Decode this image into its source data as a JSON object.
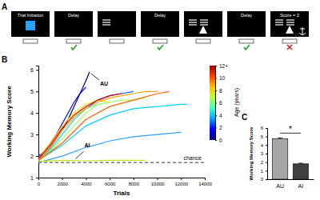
{
  "task_panel": {
    "title": "A",
    "screens": [
      "Trial Initiation",
      "Delay",
      null,
      "Delay",
      null,
      "Delay",
      "Score = 3"
    ]
  },
  "chart_data": [
    {
      "type": "line",
      "title": "B",
      "x_label": "Trials",
      "y_label": "Working Memory Score",
      "xlim": [
        0,
        14000
      ],
      "xticks": [
        0,
        2000,
        4000,
        6000,
        8000,
        10000,
        12000,
        14000
      ],
      "ylim": [
        1,
        6.2
      ],
      "yticks": [
        1,
        2,
        3,
        4,
        5,
        6
      ],
      "series": [
        {
          "color": "#00007f",
          "x": [
            0,
            500,
            1000,
            1500,
            2000,
            2500,
            3000,
            3500,
            4000,
            4300
          ],
          "values": [
            1.9,
            2.1,
            2.4,
            2.8,
            3.2,
            3.7,
            4.3,
            4.9,
            5.5,
            5.9
          ]
        },
        {
          "color": "#0000ff",
          "x": [
            0,
            500,
            1000,
            1500,
            2000,
            2500,
            3000,
            3500,
            4000
          ],
          "values": [
            2.0,
            2.2,
            2.6,
            3.0,
            3.5,
            4.0,
            4.5,
            4.9,
            5.2
          ]
        },
        {
          "color": "#0060ff",
          "x": [
            0,
            1000,
            2000,
            3000,
            4000,
            5000,
            6000,
            7000,
            8000
          ],
          "values": [
            1.8,
            2.3,
            3.0,
            3.7,
            4.2,
            4.6,
            4.8,
            4.9,
            5.0
          ]
        },
        {
          "color": "#30a0ff",
          "x": [
            0,
            2000,
            4000,
            6000,
            8000,
            10000,
            12000
          ],
          "values": [
            1.7,
            2.0,
            2.4,
            2.7,
            2.9,
            3.0,
            3.1
          ]
        },
        {
          "color": "#00d0ff",
          "x": [
            0,
            2000,
            4000,
            6000,
            8000,
            10000,
            12000,
            12500
          ],
          "values": [
            1.8,
            2.5,
            3.4,
            3.9,
            4.2,
            4.3,
            4.4,
            4.4
          ]
        },
        {
          "color": "#40ffc0",
          "x": [
            0,
            1000,
            2000,
            3000,
            4000,
            5000,
            6000
          ],
          "values": [
            1.8,
            2.3,
            3.0,
            3.7,
            4.2,
            4.4,
            4.5
          ]
        },
        {
          "color": "#a0ff60",
          "x": [
            0,
            1000,
            2000,
            3000,
            4000,
            5000,
            6000,
            7000,
            8000,
            9000
          ],
          "values": [
            1.8,
            2.2,
            2.8,
            3.4,
            4.0,
            4.4,
            4.5,
            4.6,
            4.6,
            4.7
          ]
        },
        {
          "color": "#c8e020",
          "x": [
            0,
            2000,
            4000,
            6000,
            8000,
            9000
          ],
          "values": [
            1.75,
            1.8,
            1.78,
            1.8,
            1.8,
            1.8
          ]
        },
        {
          "color": "#ffe000",
          "x": [
            0,
            1000,
            2000,
            3000,
            4000,
            5000,
            6000
          ],
          "values": [
            1.9,
            2.6,
            3.4,
            4.0,
            4.4,
            4.6,
            4.5
          ]
        },
        {
          "color": "#ffa000",
          "x": [
            0,
            1000,
            2000,
            3000,
            4000,
            5000,
            6000,
            7000,
            8000,
            9000,
            10000
          ],
          "values": [
            1.8,
            2.4,
            3.2,
            3.8,
            4.2,
            4.5,
            4.7,
            4.8,
            4.9,
            5.0,
            5.0
          ]
        },
        {
          "color": "#ff6000",
          "x": [
            0,
            2000,
            4000,
            6000,
            8000,
            10000,
            11000
          ],
          "values": [
            1.8,
            2.6,
            3.7,
            4.3,
            4.6,
            4.9,
            5.0
          ]
        },
        {
          "color": "#e00000",
          "x": [
            0,
            1000,
            2000,
            3000,
            4000,
            5000,
            6000,
            7000
          ],
          "values": [
            1.9,
            2.5,
            3.3,
            3.9,
            4.3,
            4.6,
            4.8,
            4.9
          ]
        }
      ],
      "reference_lines": [
        {
          "value": 1.7,
          "label": "chance",
          "line_style": "dashed"
        }
      ],
      "annotations": [
        {
          "text": "AU",
          "x": 4300,
          "y": 5.9
        },
        {
          "text": "AI",
          "x": 3000,
          "y": 1.8
        }
      ],
      "colorbar": {
        "label": "Age (years)",
        "range": [
          0,
          12
        ],
        "ticks": [
          0,
          2,
          4,
          6,
          8,
          10,
          {
            "value": 12,
            "label": "12+"
          }
        ],
        "colors": [
          "#00007f",
          "#0000ff",
          "#00a0ff",
          "#40ffc0",
          "#c0ff40",
          "#ffc000",
          "#ff4000",
          "#a00000"
        ]
      }
    },
    {
      "type": "bar",
      "title": "C",
      "y_label": "Working Memory Score",
      "categories": [
        "AU",
        "AI"
      ],
      "values": [
        4.75,
        1.8
      ],
      "errors": [
        0.05,
        0.03
      ],
      "colors": [
        "#a6a6a6",
        "#3f3f3f"
      ],
      "ylim": [
        0,
        6
      ],
      "yticks": [
        0,
        1,
        2,
        3,
        4,
        5,
        6
      ],
      "annotations": [
        {
          "text": "*",
          "y": 5.4
        }
      ]
    }
  ]
}
